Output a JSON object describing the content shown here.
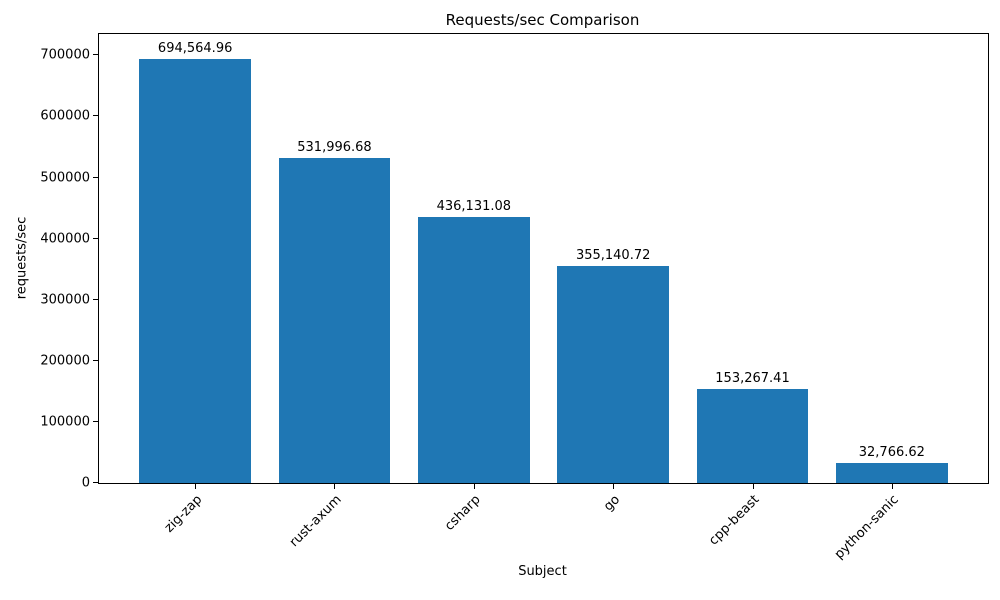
{
  "chart_data": {
    "type": "bar",
    "title": "Requests/sec Comparison",
    "xlabel": "Subject",
    "ylabel": "requests/sec",
    "categories": [
      "zig-zap",
      "rust-axum",
      "csharp",
      "go",
      "cpp-beast",
      "python-sanic"
    ],
    "values": [
      694564.96,
      531996.68,
      436131.08,
      355140.72,
      153267.41,
      32766.62
    ],
    "bar_labels": [
      "694,564.96",
      "531,996.68",
      "436,131.08",
      "355,140.72",
      "153,267.41",
      "32,766.62"
    ],
    "yticks": [
      0,
      100000,
      200000,
      300000,
      400000,
      500000,
      600000,
      700000
    ],
    "ytick_labels": [
      "0",
      "100000",
      "200000",
      "300000",
      "400000",
      "500000",
      "600000",
      "700000"
    ],
    "ylim": [
      0,
      735000
    ],
    "xlim": [
      -0.69,
      5.69
    ],
    "bar_width_units": 0.8,
    "bar_color": "#1f77b4",
    "axis_color": "#000000",
    "grid": false,
    "legend_position": "none",
    "xtick_rotation": 45
  }
}
